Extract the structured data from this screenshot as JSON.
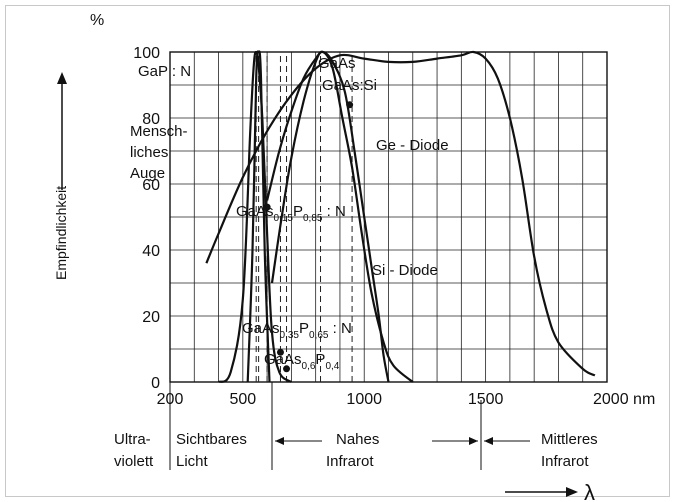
{
  "chart_data": {
    "type": "line",
    "xlabel": "λ",
    "x_unit": "nm",
    "ylabel": "Empfindlichkeit",
    "y_unit": "%",
    "xlim": [
      200,
      2000
    ],
    "ylim": [
      0,
      100
    ],
    "x_ticks": [
      200,
      500,
      1000,
      1500,
      2000
    ],
    "x_tick_labels": [
      "200",
      "500",
      "1000",
      "1500",
      "2000"
    ],
    "x_tick_last_label": "2000 nm",
    "y_ticks": [
      0,
      20,
      40,
      60,
      80,
      100
    ],
    "y_tick_labels": [
      "0",
      "20",
      "40",
      "60",
      "80",
      "100"
    ],
    "grid": true,
    "series": [
      {
        "name": "Menschliches Auge",
        "x": [
          400,
          450,
          500,
          530,
          545,
          555,
          565,
          580,
          600,
          620,
          650,
          700
        ],
        "y": [
          0,
          3,
          25,
          75,
          96,
          100,
          96,
          80,
          45,
          15,
          3,
          0
        ]
      },
      {
        "name": "GaP: N",
        "x": [
          520,
          540,
          555,
          565,
          575,
          590,
          610
        ],
        "y": [
          0,
          40,
          92,
          100,
          92,
          40,
          0
        ]
      },
      {
        "name": "GaAs",
        "x": [
          620,
          660,
          700,
          750,
          800,
          830,
          870,
          910,
          950,
          990,
          1030,
          1080,
          1120,
          1200
        ],
        "y": [
          30,
          50,
          68,
          85,
          97,
          100,
          95,
          80,
          65,
          45,
          27,
          12,
          5,
          0
        ]
      },
      {
        "name": "Ge-Diode",
        "x": [
          350,
          400,
          500,
          600,
          700,
          800,
          900,
          1000,
          1100,
          1200,
          1300,
          1400,
          1450,
          1500,
          1550,
          1600,
          1650,
          1700,
          1750,
          1800,
          1900,
          1950
        ],
        "y": [
          36,
          45,
          62,
          76,
          87,
          95,
          99,
          98,
          97,
          97,
          98,
          99,
          100,
          98,
          92,
          80,
          62,
          38,
          22,
          12,
          4,
          2
        ]
      },
      {
        "name": "Si-Diode",
        "x": [
          600,
          650,
          700,
          750,
          800,
          830,
          870,
          920,
          960,
          1000,
          1030,
          1060,
          1080,
          1100
        ],
        "y": [
          55,
          70,
          82,
          92,
          98,
          100,
          97,
          88,
          70,
          50,
          35,
          20,
          8,
          0
        ]
      }
    ],
    "markers": [
      {
        "label": "GaAs:Si",
        "x": 940,
        "y": 84
      },
      {
        "label": "GaAs0,15P0,85:N",
        "x": 600,
        "y": 53
      },
      {
        "label": "GaAs0,35P0,65:N",
        "x": 655,
        "y": 9
      },
      {
        "label": "GaAs0,6P0,4",
        "x": 680,
        "y": 4
      }
    ],
    "dashed_lines_x": [
      555,
      565,
      600,
      655,
      680,
      820,
      950
    ],
    "regions": [
      {
        "name": "Ultraviolett",
        "lines": [
          "Ultra-",
          "violett"
        ]
      },
      {
        "name": "Sichtbares Licht",
        "lines": [
          "Sichtbares",
          "Licht"
        ]
      },
      {
        "name": "Nahes Infrarot",
        "lines": [
          "Nahes",
          "Infrarot"
        ]
      },
      {
        "name": "Mittleres Infrarot",
        "lines": [
          "Mittleres",
          "Infrarot"
        ]
      }
    ]
  },
  "labels": {
    "percent": "%",
    "ylabel": "Empfindlichkeit",
    "gap": "GaP : N",
    "gaas": "GaAs",
    "gaas_si": "GaAs:Si",
    "auge": [
      "Mensch-",
      "liches",
      "Auge"
    ],
    "ge": "Ge - Diode",
    "si": "Si - Diode",
    "lam": "λ",
    "p1_a": "GaAs",
    "p1_s1": "0,15",
    "p1_b": "P",
    "p1_s2": "0,85",
    "p1_c": " : N",
    "p2_a": "GaAs",
    "p2_s1": "0,35",
    "p2_b": "P",
    "p2_s2": "0,65",
    "p2_c": " : N",
    "p3_a": "GaAs",
    "p3_s1": "0,6",
    "p3_b": "P",
    "p3_s2": "0,4",
    "r1_1": "Ultra-",
    "r1_2": "violett",
    "r2_1": "Sichtbares",
    "r2_2": "Licht",
    "r3_1": "Nahes",
    "r3_2": "Infrarot",
    "r4_1": "Mittleres",
    "r4_2": "Infrarot"
  }
}
